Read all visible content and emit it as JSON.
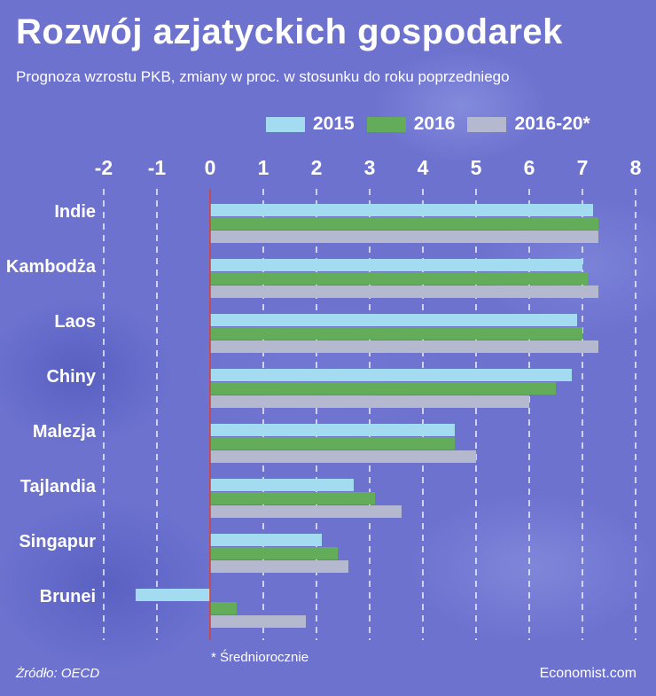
{
  "title": "Rozwój azjatyckich gospodarek",
  "subtitle": "Prognoza wzrostu PKB, zmiany w proc. w stosunku do roku poprzedniego",
  "footnote": "* Średniorocznie",
  "source": "Żródło: OECD",
  "brand": "Economist.com",
  "colors": {
    "s2015": "#a3dcf0",
    "s2016": "#63ad5a",
    "s2016_20": "#b5b9cf",
    "zero_line": "#e0402a",
    "grid": "#ffffff"
  },
  "chart_data": {
    "type": "bar",
    "orientation": "horizontal",
    "categories": [
      "Indie",
      "Kambodża",
      "Laos",
      "Chiny",
      "Malezja",
      "Tajlandia",
      "Singapur",
      "Brunei"
    ],
    "series": [
      {
        "name": "2015",
        "values": [
          7.2,
          7.0,
          6.9,
          6.8,
          4.6,
          2.7,
          2.1,
          -1.4
        ]
      },
      {
        "name": "2016",
        "values": [
          7.3,
          7.1,
          7.0,
          6.5,
          4.6,
          3.1,
          2.4,
          0.5
        ]
      },
      {
        "name": "2016-20*",
        "values": [
          7.3,
          7.3,
          7.3,
          6.0,
          5.0,
          3.6,
          2.6,
          1.8
        ]
      }
    ],
    "xlim": [
      -2,
      8
    ],
    "x_ticks": [
      "-2",
      "-1",
      "0",
      "1",
      "2",
      "3",
      "4",
      "5",
      "6",
      "7",
      "8"
    ],
    "grid": true,
    "legend_position": "top-right"
  }
}
